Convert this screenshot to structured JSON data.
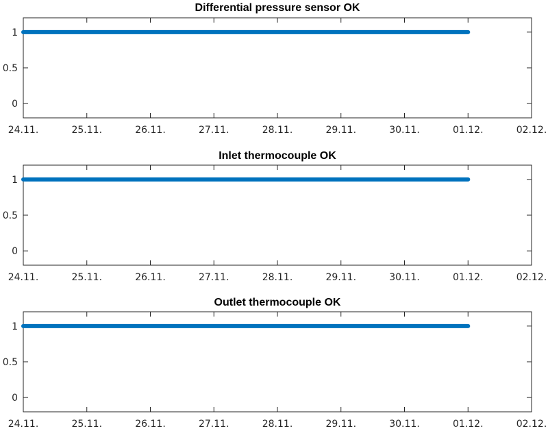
{
  "colors": {
    "series": "#0072BD",
    "axis": "#262626"
  },
  "chart_data": [
    {
      "type": "line",
      "title": "Differential pressure sensor OK",
      "xlabel": "",
      "ylabel": "",
      "x_tick_labels": [
        "24.11.",
        "25.11.",
        "26.11.",
        "27.11.",
        "28.11.",
        "29.11.",
        "30.11.",
        "01.12.",
        "02.12."
      ],
      "y_tick_labels": [
        "0",
        "0.5",
        "1"
      ],
      "y_ticks": [
        0,
        0.5,
        1
      ],
      "xlim": [
        "24.11.",
        "02.12."
      ],
      "ylim": [
        -0.2,
        1.2
      ],
      "grid": false,
      "series": [
        {
          "x": [
            "24.11.",
            "01.12."
          ],
          "values": [
            1,
            1
          ]
        }
      ]
    },
    {
      "type": "line",
      "title": "Inlet thermocouple OK",
      "xlabel": "",
      "ylabel": "",
      "x_tick_labels": [
        "24.11.",
        "25.11.",
        "26.11.",
        "27.11.",
        "28.11.",
        "29.11.",
        "30.11.",
        "01.12.",
        "02.12."
      ],
      "y_tick_labels": [
        "0",
        "0.5",
        "1"
      ],
      "y_ticks": [
        0,
        0.5,
        1
      ],
      "xlim": [
        "24.11.",
        "02.12."
      ],
      "ylim": [
        -0.2,
        1.2
      ],
      "grid": false,
      "series": [
        {
          "x": [
            "24.11.",
            "01.12."
          ],
          "values": [
            1,
            1
          ]
        }
      ]
    },
    {
      "type": "line",
      "title": "Outlet thermocouple OK",
      "xlabel": "",
      "ylabel": "",
      "x_tick_labels": [
        "24.11.",
        "25.11.",
        "26.11.",
        "27.11.",
        "28.11.",
        "29.11.",
        "30.11.",
        "01.12.",
        "02.12."
      ],
      "y_tick_labels": [
        "0",
        "0.5",
        "1"
      ],
      "y_ticks": [
        0,
        0.5,
        1
      ],
      "xlim": [
        "24.11.",
        "02.12."
      ],
      "ylim": [
        -0.2,
        1.2
      ],
      "grid": false,
      "series": [
        {
          "x": [
            "24.11.",
            "01.12."
          ],
          "values": [
            1,
            1
          ]
        }
      ]
    }
  ]
}
